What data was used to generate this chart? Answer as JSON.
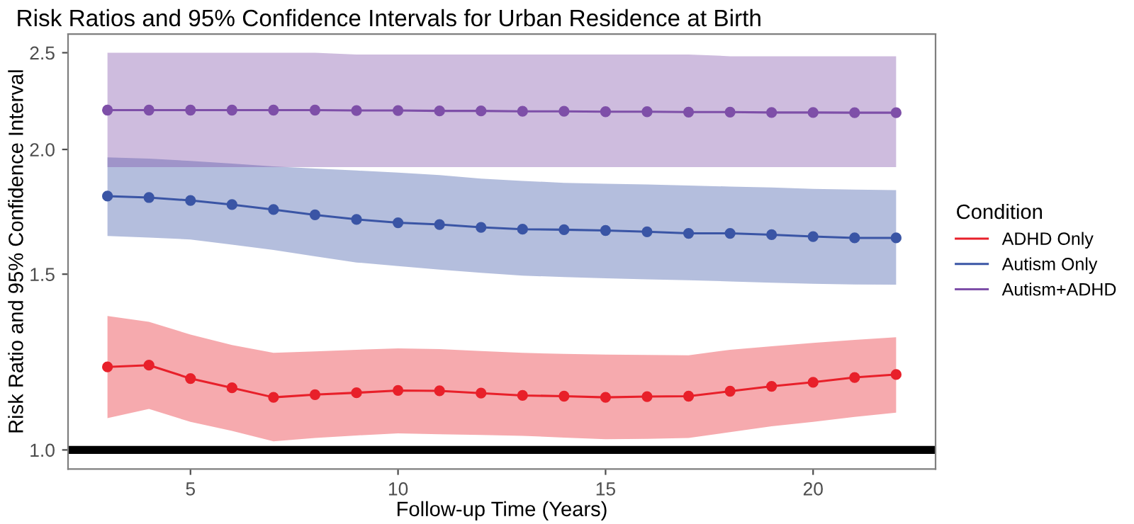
{
  "chart_data": {
    "type": "line",
    "title": "Risk Ratios and 95% Confidence Intervals for Urban Residence at Birth",
    "xlabel": "Follow-up Time (Years)",
    "ylabel": "Risk Ratio and 95% Confidence Interval",
    "legend_title": "Condition",
    "x": [
      3,
      4,
      5,
      6,
      7,
      8,
      9,
      10,
      11,
      12,
      13,
      14,
      15,
      16,
      17,
      18,
      19,
      20,
      21,
      22
    ],
    "series": [
      {
        "name": "ADHD Only",
        "color": "#e8202a",
        "values": [
          1.211,
          1.216,
          1.179,
          1.154,
          1.129,
          1.136,
          1.141,
          1.147,
          1.146,
          1.14,
          1.134,
          1.132,
          1.129,
          1.131,
          1.132,
          1.145,
          1.158,
          1.169,
          1.182,
          1.19
        ],
        "upper": [
          1.362,
          1.344,
          1.305,
          1.274,
          1.251,
          1.255,
          1.26,
          1.264,
          1.262,
          1.256,
          1.251,
          1.248,
          1.246,
          1.245,
          1.244,
          1.26,
          1.27,
          1.28,
          1.289,
          1.297
        ],
        "lower": [
          1.076,
          1.099,
          1.067,
          1.045,
          1.02,
          1.028,
          1.034,
          1.039,
          1.037,
          1.035,
          1.033,
          1.029,
          1.025,
          1.026,
          1.028,
          1.042,
          1.056,
          1.067,
          1.079,
          1.09
        ]
      },
      {
        "name": "Autism Only",
        "color": "#3a55a5",
        "values": [
          1.796,
          1.79,
          1.778,
          1.761,
          1.741,
          1.72,
          1.702,
          1.689,
          1.682,
          1.671,
          1.664,
          1.662,
          1.659,
          1.654,
          1.648,
          1.648,
          1.643,
          1.636,
          1.631,
          1.631
        ],
        "upper": [
          1.964,
          1.958,
          1.948,
          1.936,
          1.923,
          1.914,
          1.905,
          1.896,
          1.885,
          1.87,
          1.86,
          1.852,
          1.848,
          1.845,
          1.84,
          1.836,
          1.832,
          1.826,
          1.823,
          1.821
        ],
        "lower": [
          1.638,
          1.632,
          1.625,
          1.606,
          1.586,
          1.563,
          1.541,
          1.528,
          1.516,
          1.505,
          1.495,
          1.49,
          1.486,
          1.482,
          1.479,
          1.475,
          1.471,
          1.467,
          1.465,
          1.464
        ]
      },
      {
        "name": "Autism+ADHD",
        "color": "#7e4fa8",
        "values": [
          2.19,
          2.19,
          2.19,
          2.19,
          2.19,
          2.19,
          2.188,
          2.188,
          2.186,
          2.186,
          2.184,
          2.184,
          2.182,
          2.182,
          2.18,
          2.18,
          2.178,
          2.178,
          2.177,
          2.177
        ],
        "upper": [
          2.5,
          2.5,
          2.5,
          2.5,
          2.5,
          2.5,
          2.49,
          2.49,
          2.49,
          2.49,
          2.49,
          2.49,
          2.49,
          2.49,
          2.49,
          2.48,
          2.48,
          2.48,
          2.48,
          2.48
        ],
        "lower": [
          1.92,
          1.92,
          1.92,
          1.92,
          1.92,
          1.92,
          1.92,
          1.92,
          1.92,
          1.92,
          1.92,
          1.92,
          1.92,
          1.92,
          1.92,
          1.92,
          1.92,
          1.92,
          1.92,
          1.92
        ]
      }
    ],
    "log": "y",
    "xlim": [
      2.05,
      22.95
    ],
    "ylim": [
      0.957,
      2.61
    ],
    "xticks": [
      5,
      10,
      15,
      20
    ],
    "yticks": [
      {
        "value": 1.0,
        "label": "1.0"
      },
      {
        "value": 1.5,
        "label": "1.5"
      },
      {
        "value": 2.0,
        "label": "2.0"
      },
      {
        "value": 2.5,
        "label": "2.5"
      }
    ],
    "ref_lines": [
      {
        "axis": "y",
        "value": 1.0,
        "color": "#000000"
      }
    ],
    "marker": "circle",
    "line_style": "solid",
    "grid": false,
    "legend": "right"
  }
}
